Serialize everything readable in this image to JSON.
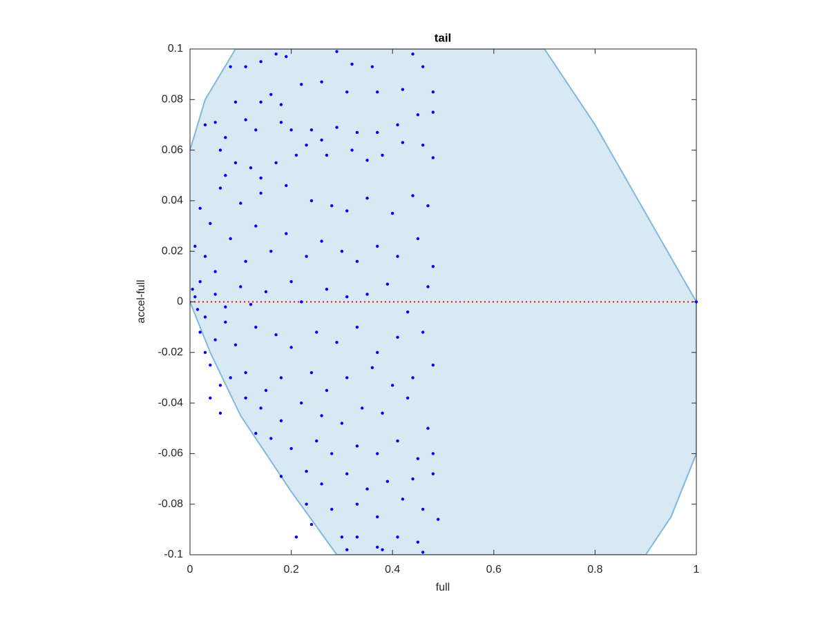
{
  "chart_data": {
    "type": "scatter",
    "title": "tail",
    "x_label": "full",
    "y_label": "accel-full",
    "xlim": [
      0,
      1
    ],
    "ylim": [
      -0.1,
      0.1
    ],
    "xticks": [
      0,
      0.2,
      0.4,
      0.6,
      0.8,
      1
    ],
    "yticks": [
      -0.1,
      -0.08,
      -0.06,
      -0.04,
      -0.02,
      0,
      0.02,
      0.04,
      0.06,
      0.08,
      0.1
    ],
    "region": {
      "color": "#d9e9f4",
      "edge_color": "#7fb8dc",
      "x": [
        0,
        0.03,
        0.09,
        0.7,
        0.8,
        0.9,
        1,
        1,
        0.95,
        0.9,
        0.29,
        0.2,
        0.1,
        0.04,
        0
      ],
      "y": [
        0.06,
        0.08,
        0.1,
        0.1,
        0.07,
        0.035,
        0,
        -0.06,
        -0.085,
        -0.1,
        -0.1,
        -0.075,
        -0.045,
        -0.02,
        0
      ]
    },
    "refline": {
      "y": 0,
      "color": "#ff0000"
    },
    "series": [
      {
        "color": "#0000ff",
        "x": [
          0.08,
          0.11,
          0.14,
          0.17,
          0.19,
          0.29,
          0.32,
          0.36,
          0.44,
          0.46,
          0.05,
          0.07,
          0.09,
          0.14,
          0.16,
          0.18,
          0.22,
          0.26,
          0.31,
          0.37,
          0.42,
          0.48,
          0.03,
          0.06,
          0.11,
          0.13,
          0.18,
          0.2,
          0.24,
          0.26,
          0.29,
          0.33,
          0.37,
          0.41,
          0.45,
          0.48,
          0.07,
          0.09,
          0.12,
          0.14,
          0.17,
          0.21,
          0.23,
          0.27,
          0.32,
          0.35,
          0.38,
          0.42,
          0.46,
          0.48,
          0.02,
          0.04,
          0.06,
          0.1,
          0.14,
          0.19,
          0.24,
          0.28,
          0.31,
          0.35,
          0.4,
          0.44,
          0.47,
          0.01,
          0.03,
          0.05,
          0.08,
          0.11,
          0.13,
          0.16,
          0.19,
          0.23,
          0.26,
          0.3,
          0.33,
          0.37,
          0.41,
          0.45,
          0.48,
          0.005,
          0.01,
          0.015,
          0.02,
          0.03,
          0.05,
          0.07,
          0.1,
          0.12,
          0.15,
          0.2,
          0.22,
          0.27,
          0.31,
          0.35,
          0.39,
          0.43,
          0.47,
          0.02,
          0.03,
          0.05,
          0.07,
          0.09,
          0.13,
          0.17,
          0.2,
          0.25,
          0.29,
          0.33,
          0.37,
          0.41,
          0.46,
          0.04,
          0.06,
          0.08,
          0.11,
          0.15,
          0.18,
          0.24,
          0.27,
          0.31,
          0.36,
          0.4,
          0.44,
          0.48,
          0.04,
          0.06,
          0.11,
          0.14,
          0.18,
          0.22,
          0.26,
          0.3,
          0.34,
          0.38,
          0.43,
          0.47,
          0.13,
          0.16,
          0.2,
          0.25,
          0.28,
          0.33,
          0.37,
          0.41,
          0.45,
          0.48,
          0.18,
          0.23,
          0.26,
          0.31,
          0.35,
          0.39,
          0.44,
          0.48,
          0.23,
          0.28,
          0.33,
          0.37,
          0.42,
          0.46,
          0.49,
          0.21,
          0.24,
          0.3,
          0.33,
          0.37,
          0.41,
          0.45,
          0.31,
          0.38,
          0.46,
          1
        ],
        "y": [
          0.093,
          0.093,
          0.095,
          0.098,
          0.097,
          0.099,
          0.094,
          0.093,
          0.098,
          0.093,
          0.071,
          0.065,
          0.079,
          0.079,
          0.082,
          0.078,
          0.086,
          0.087,
          0.083,
          0.083,
          0.084,
          0.083,
          0.07,
          0.06,
          0.072,
          0.068,
          0.071,
          0.068,
          0.068,
          0.064,
          0.069,
          0.067,
          0.067,
          0.07,
          0.074,
          0.075,
          0.05,
          0.055,
          0.053,
          0.049,
          0.055,
          0.058,
          0.062,
          0.058,
          0.06,
          0.056,
          0.058,
          0.063,
          0.062,
          0.057,
          0.037,
          0.031,
          0.045,
          0.039,
          0.043,
          0.046,
          0.04,
          0.038,
          0.036,
          0.041,
          0.035,
          0.042,
          0.038,
          0.022,
          0.018,
          0.012,
          0.025,
          0.016,
          0.03,
          0.02,
          0.027,
          0.018,
          0.024,
          0.02,
          0.016,
          0.022,
          0.018,
          0.025,
          0.014,
          0.005,
          0.002,
          -0.003,
          0.008,
          -0.006,
          0.003,
          -0.002,
          0.006,
          -0.001,
          0.004,
          0.008,
          0,
          0.005,
          0.002,
          0.003,
          0.007,
          -0.004,
          0.006,
          -0.012,
          -0.02,
          -0.015,
          -0.008,
          -0.017,
          -0.01,
          -0.013,
          -0.018,
          -0.012,
          -0.016,
          -0.01,
          -0.02,
          -0.014,
          -0.012,
          -0.025,
          -0.033,
          -0.03,
          -0.028,
          -0.035,
          -0.03,
          -0.028,
          -0.035,
          -0.03,
          -0.026,
          -0.033,
          -0.03,
          -0.025,
          -0.038,
          -0.044,
          -0.038,
          -0.042,
          -0.047,
          -0.04,
          -0.045,
          -0.048,
          -0.042,
          -0.044,
          -0.038,
          -0.05,
          -0.052,
          -0.054,
          -0.058,
          -0.055,
          -0.06,
          -0.057,
          -0.06,
          -0.055,
          -0.062,
          -0.06,
          -0.069,
          -0.067,
          -0.072,
          -0.068,
          -0.074,
          -0.071,
          -0.07,
          -0.068,
          -0.08,
          -0.082,
          -0.08,
          -0.085,
          -0.078,
          -0.082,
          -0.086,
          -0.093,
          -0.088,
          -0.093,
          -0.093,
          -0.097,
          -0.093,
          -0.095,
          -0.098,
          -0.098,
          -0.099,
          0
        ]
      }
    ]
  }
}
